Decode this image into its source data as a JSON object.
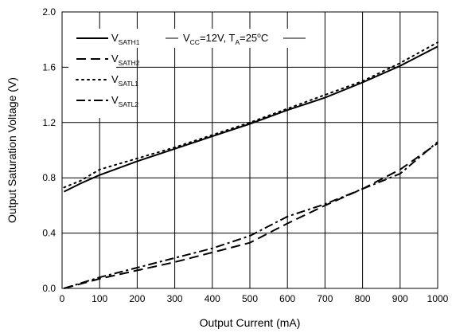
{
  "chart_data": {
    "type": "line",
    "title": "",
    "xlabel": "Output Current (mA)",
    "ylabel": "Output Saturation Voltage (V)",
    "xlim": [
      0,
      1000
    ],
    "ylim": [
      0,
      2.0
    ],
    "x_ticks": [
      "0",
      "100",
      "200",
      "300",
      "400",
      "500",
      "600",
      "700",
      "800",
      "900",
      "1000"
    ],
    "y_ticks": [
      "0.0",
      "0.4",
      "0.8",
      "1.2",
      "1.6",
      "2.0"
    ],
    "grid": true,
    "legend_position": "top-left",
    "condition": {
      "vcc_main": "V",
      "vcc_sub": "CC",
      "vcc_value": "=12V, ",
      "ta_main": "T",
      "ta_sub": "A",
      "ta_value": "=25",
      "ta_degree": "o",
      "ta_unit": "C"
    },
    "series": [
      {
        "main": "V",
        "sub": "SATH1",
        "style": "solid",
        "points": [
          [
            5,
            0.7
          ],
          [
            50,
            0.76
          ],
          [
            100,
            0.82
          ],
          [
            200,
            0.92
          ],
          [
            300,
            1.01
          ],
          [
            400,
            1.1
          ],
          [
            500,
            1.19
          ],
          [
            600,
            1.29
          ],
          [
            700,
            1.38
          ],
          [
            800,
            1.49
          ],
          [
            900,
            1.61
          ],
          [
            1000,
            1.75
          ]
        ]
      },
      {
        "main": "V",
        "sub": "SATH2",
        "style": "dashed",
        "points": [
          [
            5,
            0.0
          ],
          [
            100,
            0.07
          ],
          [
            200,
            0.13
          ],
          [
            300,
            0.19
          ],
          [
            400,
            0.26
          ],
          [
            500,
            0.33
          ],
          [
            600,
            0.47
          ],
          [
            700,
            0.6
          ],
          [
            800,
            0.72
          ],
          [
            900,
            0.86
          ],
          [
            1000,
            1.05
          ]
        ]
      },
      {
        "main": "V",
        "sub": "SATL1",
        "style": "dotted",
        "points": [
          [
            5,
            0.73
          ],
          [
            50,
            0.78
          ],
          [
            100,
            0.86
          ],
          [
            200,
            0.94
          ],
          [
            300,
            1.02
          ],
          [
            400,
            1.11
          ],
          [
            500,
            1.2
          ],
          [
            600,
            1.3
          ],
          [
            700,
            1.4
          ],
          [
            800,
            1.5
          ],
          [
            900,
            1.63
          ],
          [
            1000,
            1.78
          ]
        ]
      },
      {
        "main": "V",
        "sub": "SATL2",
        "style": "dashdot",
        "points": [
          [
            5,
            0.0
          ],
          [
            100,
            0.08
          ],
          [
            200,
            0.15
          ],
          [
            300,
            0.22
          ],
          [
            400,
            0.29
          ],
          [
            500,
            0.38
          ],
          [
            600,
            0.52
          ],
          [
            700,
            0.61
          ],
          [
            800,
            0.72
          ],
          [
            900,
            0.83
          ],
          [
            1000,
            1.06
          ]
        ]
      }
    ]
  }
}
